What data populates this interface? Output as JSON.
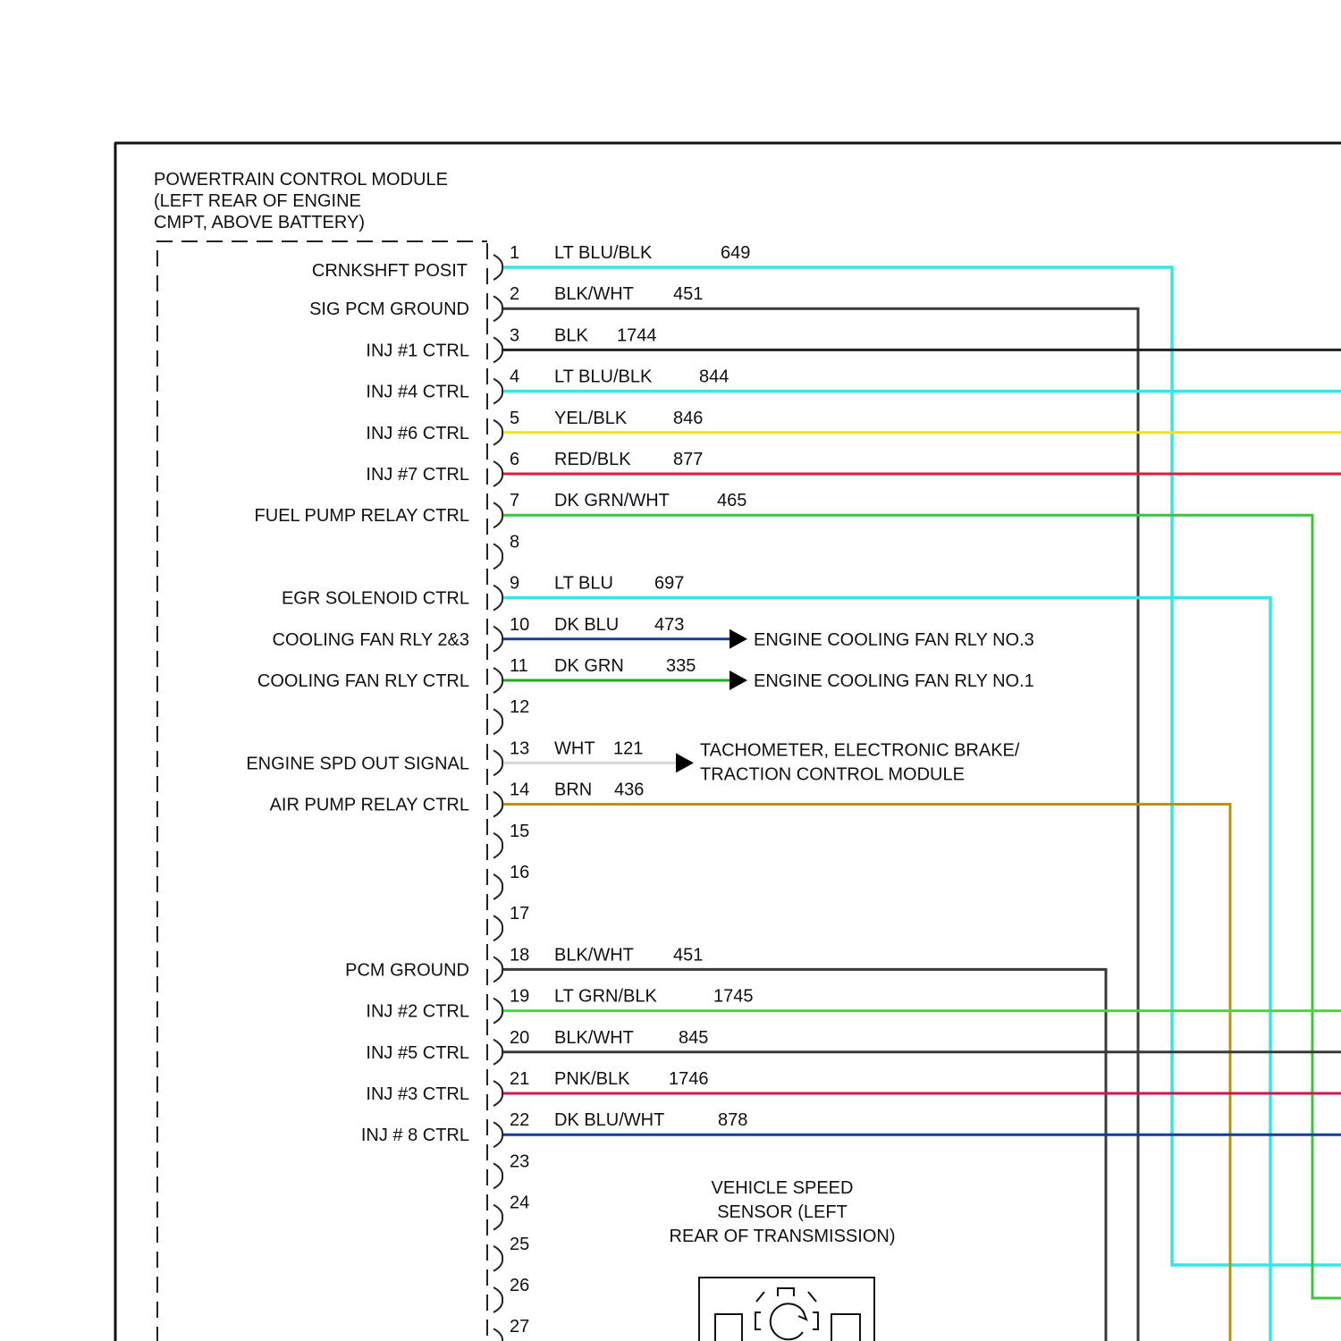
{
  "module": {
    "title_lines": [
      "POWERTRAIN CONTROL MODULE",
      "(LEFT REAR OF ENGINE",
      "CMPT, ABOVE BATTERY)"
    ]
  },
  "pins": [
    {
      "num": "1",
      "wire": "LT BLU/BLK",
      "circuit": "649",
      "color": "#33e6ea",
      "labels": []
    },
    {
      "num": "2",
      "wire": "BLK/WHT",
      "circuit": "451",
      "color": "#3a3a3a",
      "labels": [
        "CRNKSHFT POSIT",
        "SIG PCM GROUND"
      ]
    },
    {
      "num": "3",
      "wire": "BLK",
      "circuit": "1744",
      "color": "#222222",
      "labels": [
        "INJ #1 CTRL"
      ]
    },
    {
      "num": "4",
      "wire": "LT BLU/BLK",
      "circuit": "844",
      "color": "#33e6ea",
      "labels": [
        "INJ #4 CTRL"
      ]
    },
    {
      "num": "5",
      "wire": "YEL/BLK",
      "circuit": "846",
      "color": "#f2e600",
      "labels": [
        "INJ #6 CTRL"
      ]
    },
    {
      "num": "6",
      "wire": "RED/BLK",
      "circuit": "877",
      "color": "#d9203a",
      "labels": [
        "INJ #7 CTRL"
      ]
    },
    {
      "num": "7",
      "wire": "DK GRN/WHT",
      "circuit": "465",
      "color": "#3cc43c",
      "labels": [
        "FUEL PUMP RELAY CTRL"
      ]
    },
    {
      "num": "8",
      "wire": "",
      "circuit": "",
      "color": "",
      "labels": []
    },
    {
      "num": "9",
      "wire": "LT BLU",
      "circuit": "697",
      "color": "#33e6ea",
      "labels": [
        "EGR SOLENOID CTRL"
      ]
    },
    {
      "num": "10",
      "wire": "DK BLU",
      "circuit": "473",
      "color": "#123f9c",
      "labels": [
        "COOLING FAN RLY 2&3"
      ],
      "dest": [
        "ENGINE COOLING FAN RLY NO.3"
      ]
    },
    {
      "num": "11",
      "wire": "DK GRN",
      "circuit": "335",
      "color": "#22aa22",
      "labels": [
        "COOLING FAN RLY CTRL"
      ],
      "dest": [
        "ENGINE COOLING FAN RLY NO.1"
      ]
    },
    {
      "num": "12",
      "wire": "",
      "circuit": "",
      "color": "",
      "labels": []
    },
    {
      "num": "13",
      "wire": "WHT",
      "circuit": "121",
      "color": "#d8d8d8",
      "labels": [
        "ENGINE SPD OUT SIGNAL"
      ],
      "dest": [
        "TACHOMETER, ELECTRONIC BRAKE/",
        "TRACTION CONTROL MODULE"
      ]
    },
    {
      "num": "14",
      "wire": "BRN",
      "circuit": "436",
      "color": "#b8900f",
      "labels": [
        "AIR PUMP RELAY CTRL"
      ]
    },
    {
      "num": "15",
      "wire": "",
      "circuit": "",
      "color": "",
      "labels": []
    },
    {
      "num": "16",
      "wire": "",
      "circuit": "",
      "color": "",
      "labels": []
    },
    {
      "num": "17",
      "wire": "",
      "circuit": "",
      "color": "",
      "labels": []
    },
    {
      "num": "18",
      "wire": "BLK/WHT",
      "circuit": "451",
      "color": "#3a3a3a",
      "labels": [
        "PCM GROUND"
      ]
    },
    {
      "num": "19",
      "wire": "LT GRN/BLK",
      "circuit": "1745",
      "color": "#44dd33",
      "labels": [
        "INJ #2 CTRL"
      ]
    },
    {
      "num": "20",
      "wire": "BLK/WHT",
      "circuit": "845",
      "color": "#3a3a3a",
      "labels": [
        "INJ #5 CTRL"
      ]
    },
    {
      "num": "21",
      "wire": "PNK/BLK",
      "circuit": "1746",
      "color": "#d01850",
      "labels": [
        "INJ #3 CTRL"
      ]
    },
    {
      "num": "22",
      "wire": "DK BLU/WHT",
      "circuit": "878",
      "color": "#123f9c",
      "labels": [
        "INJ # 8 CTRL"
      ]
    },
    {
      "num": "23",
      "wire": "",
      "circuit": "",
      "color": "",
      "labels": []
    },
    {
      "num": "24",
      "wire": "",
      "circuit": "",
      "color": "",
      "labels": []
    },
    {
      "num": "25",
      "wire": "",
      "circuit": "",
      "color": "",
      "labels": []
    },
    {
      "num": "26",
      "wire": "",
      "circuit": "",
      "color": "",
      "labels": []
    },
    {
      "num": "27",
      "wire": "",
      "circuit": "",
      "color": "",
      "labels": []
    }
  ],
  "sensor": {
    "title_lines": [
      "VEHICLE SPEED",
      "SENSOR (LEFT",
      "REAR OF TRANSMISSION)"
    ],
    "icon": "rotation-sensor-icon"
  }
}
